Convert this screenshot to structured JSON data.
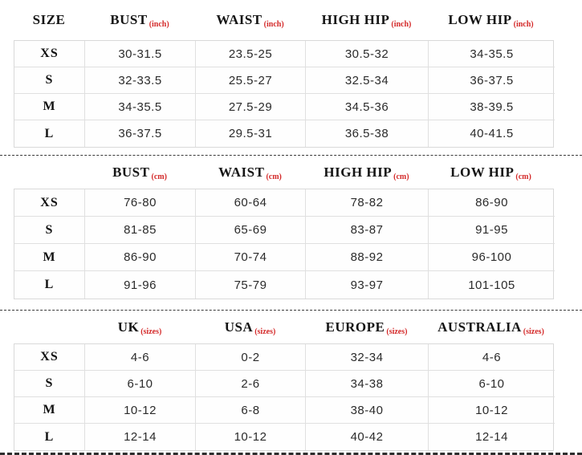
{
  "colors": {
    "accent_red": "#d42a2a",
    "grid_line": "#e0e0e0",
    "header_text": "#151515",
    "data_text": "#2b2b2b",
    "dash_line": "#3a3a3a"
  },
  "sections": [
    {
      "name": "measurements-inches",
      "columns": [
        {
          "label": "SIZE",
          "unit": ""
        },
        {
          "label": "BUST",
          "unit": "(inch)"
        },
        {
          "label": "WAIST",
          "unit": "(inch)"
        },
        {
          "label": "HIGH HIP",
          "unit": "(inch)"
        },
        {
          "label": "LOW HIP",
          "unit": "(inch)"
        }
      ],
      "rows": [
        {
          "size": "XS",
          "values": [
            "30-31.5",
            "23.5-25",
            "30.5-32",
            "34-35.5"
          ]
        },
        {
          "size": "S",
          "values": [
            "32-33.5",
            "25.5-27",
            "32.5-34",
            "36-37.5"
          ]
        },
        {
          "size": "M",
          "values": [
            "34-35.5",
            "27.5-29",
            "34.5-36",
            "38-39.5"
          ]
        },
        {
          "size": "L",
          "values": [
            "36-37.5",
            "29.5-31",
            "36.5-38",
            "40-41.5"
          ]
        }
      ]
    },
    {
      "name": "measurements-cm",
      "columns": [
        {
          "label": "",
          "unit": ""
        },
        {
          "label": "BUST",
          "unit": "(cm)"
        },
        {
          "label": "WAIST",
          "unit": "(cm)"
        },
        {
          "label": "HIGH HIP",
          "unit": "(cm)"
        },
        {
          "label": "LOW HIP",
          "unit": "(cm)"
        }
      ],
      "rows": [
        {
          "size": "XS",
          "values": [
            "76-80",
            "60-64",
            "78-82",
            "86-90"
          ]
        },
        {
          "size": "S",
          "values": [
            "81-85",
            "65-69",
            "83-87",
            "91-95"
          ]
        },
        {
          "size": "M",
          "values": [
            "86-90",
            "70-74",
            "88-92",
            "96-100"
          ]
        },
        {
          "size": "L",
          "values": [
            "91-96",
            "75-79",
            "93-97",
            "101-105"
          ]
        }
      ]
    },
    {
      "name": "international-sizes",
      "columns": [
        {
          "label": "",
          "unit": ""
        },
        {
          "label": "UK",
          "unit": "(sizes)"
        },
        {
          "label": "USA",
          "unit": "(sizes)"
        },
        {
          "label": "EUROPE",
          "unit": "(sizes)"
        },
        {
          "label": "AUSTRALIA",
          "unit": "(sizes)"
        }
      ],
      "rows": [
        {
          "size": "XS",
          "values": [
            "4-6",
            "0-2",
            "32-34",
            "4-6"
          ]
        },
        {
          "size": "S",
          "values": [
            "6-10",
            "2-6",
            "34-38",
            "6-10"
          ]
        },
        {
          "size": "M",
          "values": [
            "10-12",
            "6-8",
            "38-40",
            "10-12"
          ]
        },
        {
          "size": "L",
          "values": [
            "12-14",
            "10-12",
            "40-42",
            "12-14"
          ]
        }
      ]
    }
  ]
}
